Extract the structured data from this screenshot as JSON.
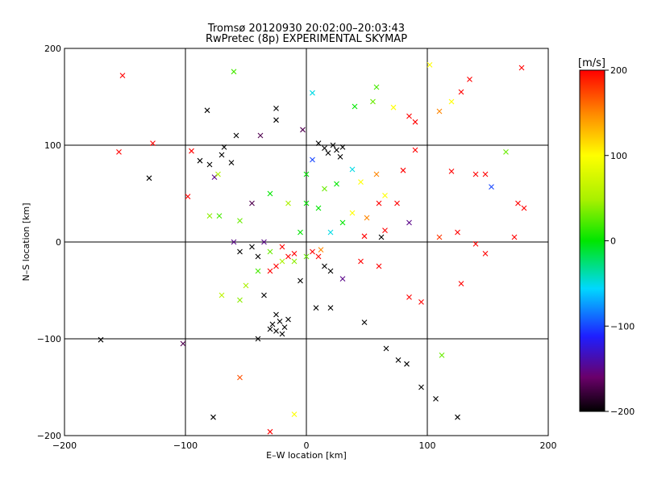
{
  "chart_data": {
    "type": "scatter",
    "title": "Tromsø 20120930 20:02:00–20:03:43",
    "subtitle": "RwPretec (8p) EXPERIMENTAL SKYMAP",
    "xlabel": "E–W location [km]",
    "ylabel": "N–S location [km]",
    "xlim": [
      -200,
      200
    ],
    "ylim": [
      -200,
      200
    ],
    "x_ticks": [
      "−200",
      "−100",
      "0",
      "100",
      "200"
    ],
    "y_ticks": [
      "−200",
      "−100",
      "0",
      "100",
      "200"
    ],
    "grid": true,
    "colorbar": {
      "label": "[m/s]",
      "range": [
        -200,
        200
      ],
      "ticks": [
        "200",
        "100",
        "0",
        "−100",
        "−200"
      ],
      "colormap": "rainbow: black-purple-blue-cyan-green-yellow-red"
    },
    "markers": "x for large symbols, + for small symbols; color = velocity in m/s",
    "points": [
      {
        "x": -152,
        "y": 172,
        "v": 200,
        "m": "x"
      },
      {
        "x": -155,
        "y": 93,
        "v": 200,
        "m": "x"
      },
      {
        "x": -127,
        "y": 102,
        "v": 200,
        "m": "x"
      },
      {
        "x": -130,
        "y": 66,
        "v": -200,
        "m": "x"
      },
      {
        "x": -98,
        "y": 47,
        "v": 200,
        "m": "x"
      },
      {
        "x": -95,
        "y": 94,
        "v": 200,
        "m": "x"
      },
      {
        "x": -88,
        "y": 84,
        "v": -200,
        "m": "x"
      },
      {
        "x": -82,
        "y": 136,
        "v": -200,
        "m": "x"
      },
      {
        "x": -80,
        "y": 80,
        "v": -200,
        "m": "x"
      },
      {
        "x": -76,
        "y": 67,
        "v": -150,
        "m": "x"
      },
      {
        "x": -73,
        "y": 70,
        "v": 50,
        "m": "x"
      },
      {
        "x": -70,
        "y": 90,
        "v": -200,
        "m": "x"
      },
      {
        "x": -68,
        "y": 98,
        "v": -200,
        "m": "x"
      },
      {
        "x": -62,
        "y": 82,
        "v": -200,
        "m": "x"
      },
      {
        "x": -58,
        "y": 110,
        "v": -200,
        "m": "x"
      },
      {
        "x": -60,
        "y": 176,
        "v": 20,
        "m": "x"
      },
      {
        "x": -80,
        "y": 27,
        "v": 40,
        "m": "x"
      },
      {
        "x": -72,
        "y": 27,
        "v": 20,
        "m": "x"
      },
      {
        "x": -55,
        "y": 22,
        "v": 30,
        "m": "x"
      },
      {
        "x": -38,
        "y": 110,
        "v": -170,
        "m": "x"
      },
      {
        "x": -25,
        "y": 138,
        "v": -200,
        "m": "x"
      },
      {
        "x": -25,
        "y": 126,
        "v": -200,
        "m": "x"
      },
      {
        "x": -3,
        "y": 116,
        "v": -170,
        "m": "x"
      },
      {
        "x": 5,
        "y": 154,
        "v": -50,
        "m": "x"
      },
      {
        "x": 40,
        "y": 140,
        "v": 0,
        "m": "x"
      },
      {
        "x": 55,
        "y": 145,
        "v": 30,
        "m": "x"
      },
      {
        "x": 58,
        "y": 160,
        "v": 20,
        "m": "x"
      },
      {
        "x": 72,
        "y": 139,
        "v": 100,
        "m": "x"
      },
      {
        "x": 85,
        "y": 130,
        "v": 200,
        "m": "x"
      },
      {
        "x": 90,
        "y": 124,
        "v": 200,
        "m": "x"
      },
      {
        "x": 102,
        "y": 183,
        "v": 100,
        "m": "x"
      },
      {
        "x": 110,
        "y": 135,
        "v": 150,
        "m": "x"
      },
      {
        "x": 120,
        "y": 145,
        "v": 100,
        "m": "x"
      },
      {
        "x": 128,
        "y": 155,
        "v": 200,
        "m": "x"
      },
      {
        "x": 135,
        "y": 168,
        "v": 200,
        "m": "x"
      },
      {
        "x": 165,
        "y": 93,
        "v": 30,
        "m": "x"
      },
      {
        "x": 178,
        "y": 180,
        "v": 200,
        "m": "x"
      },
      {
        "x": 120,
        "y": 73,
        "v": 200,
        "m": "x"
      },
      {
        "x": 140,
        "y": 70,
        "v": 200,
        "m": "x"
      },
      {
        "x": 148,
        "y": 70,
        "v": 200,
        "m": "x"
      },
      {
        "x": 153,
        "y": 57,
        "v": -100,
        "m": "x"
      },
      {
        "x": 175,
        "y": 40,
        "v": 200,
        "m": "x"
      },
      {
        "x": 180,
        "y": 35,
        "v": 200,
        "m": "x"
      },
      {
        "x": 90,
        "y": 95,
        "v": 200,
        "m": "x"
      },
      {
        "x": 80,
        "y": 74,
        "v": 200,
        "m": "x"
      },
      {
        "x": 85,
        "y": 20,
        "v": -150,
        "m": "x"
      },
      {
        "x": 62,
        "y": 5,
        "v": -200,
        "m": "x"
      },
      {
        "x": 48,
        "y": 6,
        "v": 200,
        "m": "x"
      },
      {
        "x": 65,
        "y": 12,
        "v": 200,
        "m": "x"
      },
      {
        "x": 110,
        "y": 5,
        "v": 180,
        "m": "x"
      },
      {
        "x": 125,
        "y": 10,
        "v": 200,
        "m": "x"
      },
      {
        "x": 140,
        "y": -2,
        "v": 200,
        "m": "x"
      },
      {
        "x": 148,
        "y": -12,
        "v": 200,
        "m": "x"
      },
      {
        "x": 172,
        "y": 5,
        "v": 200,
        "m": "x"
      },
      {
        "x": 128,
        "y": -43,
        "v": 200,
        "m": "x"
      },
      {
        "x": 112,
        "y": -117,
        "v": 30,
        "m": "x"
      },
      {
        "x": 95,
        "y": -62,
        "v": 200,
        "m": "x"
      },
      {
        "x": 85,
        "y": -57,
        "v": 200,
        "m": "x"
      },
      {
        "x": 66,
        "y": -110,
        "v": -200,
        "m": "x"
      },
      {
        "x": 76,
        "y": -122,
        "v": -200,
        "m": "x"
      },
      {
        "x": 83,
        "y": -126,
        "v": -200,
        "m": "x"
      },
      {
        "x": 95,
        "y": -150,
        "v": -200,
        "m": "x"
      },
      {
        "x": 107,
        "y": -162,
        "v": -200,
        "m": "x"
      },
      {
        "x": 125,
        "y": -181,
        "v": -200,
        "m": "x"
      },
      {
        "x": 48,
        "y": -83,
        "v": -200,
        "m": "x"
      },
      {
        "x": 20,
        "y": -68,
        "v": -200,
        "m": "x"
      },
      {
        "x": 8,
        "y": -68,
        "v": -200,
        "m": "x"
      },
      {
        "x": 45,
        "y": -20,
        "v": 200,
        "m": "x"
      },
      {
        "x": 30,
        "y": -38,
        "v": -150,
        "m": "x"
      },
      {
        "x": 15,
        "y": -25,
        "v": -200,
        "m": "x"
      },
      {
        "x": -170,
        "y": -101,
        "v": -200,
        "m": "x"
      },
      {
        "x": -102,
        "y": -105,
        "v": -170,
        "m": "x"
      },
      {
        "x": -55,
        "y": -140,
        "v": 170,
        "m": "x"
      },
      {
        "x": -77,
        "y": -181,
        "v": -200,
        "m": "x"
      },
      {
        "x": -40,
        "y": -100,
        "v": -200,
        "m": "x"
      },
      {
        "x": -30,
        "y": -196,
        "v": 200,
        "m": "x"
      },
      {
        "x": -10,
        "y": -178,
        "v": 100,
        "m": "x"
      },
      {
        "x": -25,
        "y": -75,
        "v": -200,
        "m": "x"
      },
      {
        "x": -22,
        "y": -82,
        "v": -200,
        "m": "x"
      },
      {
        "x": -28,
        "y": -85,
        "v": -200,
        "m": "x"
      },
      {
        "x": -18,
        "y": -88,
        "v": -200,
        "m": "x"
      },
      {
        "x": -25,
        "y": -92,
        "v": -200,
        "m": "x"
      },
      {
        "x": -20,
        "y": -95,
        "v": -200,
        "m": "x"
      },
      {
        "x": -30,
        "y": -90,
        "v": -200,
        "m": "x"
      },
      {
        "x": -15,
        "y": -80,
        "v": -200,
        "m": "x"
      },
      {
        "x": -35,
        "y": -55,
        "v": -200,
        "m": "x"
      },
      {
        "x": -60,
        "y": 0,
        "v": -150,
        "m": "x"
      },
      {
        "x": -55,
        "y": -10,
        "v": -200,
        "m": "x"
      },
      {
        "x": -30,
        "y": -30,
        "v": 200,
        "m": "x"
      },
      {
        "x": -25,
        "y": -25,
        "v": 200,
        "m": "x"
      },
      {
        "x": -15,
        "y": -15,
        "v": 200,
        "m": "x"
      },
      {
        "x": -20,
        "y": -5,
        "v": 200,
        "m": "x"
      },
      {
        "x": -10,
        "y": -12,
        "v": 200,
        "m": "x"
      },
      {
        "x": 5,
        "y": -10,
        "v": 200,
        "m": "x"
      },
      {
        "x": 10,
        "y": -15,
        "v": 200,
        "m": "x"
      },
      {
        "x": 12,
        "y": -8,
        "v": 150,
        "m": "x"
      },
      {
        "x": 20,
        "y": -30,
        "v": -200,
        "m": "x"
      },
      {
        "x": -5,
        "y": -40,
        "v": -200,
        "m": "x"
      },
      {
        "x": -40,
        "y": -15,
        "v": -200,
        "m": "x"
      },
      {
        "x": -45,
        "y": -5,
        "v": -200,
        "m": "x"
      },
      {
        "x": -35,
        "y": 0,
        "v": -150,
        "m": "x"
      },
      {
        "x": 15,
        "y": 97,
        "v": -200,
        "m": "x"
      },
      {
        "x": 18,
        "y": 92,
        "v": -200,
        "m": "x"
      },
      {
        "x": 22,
        "y": 100,
        "v": -200,
        "m": "x"
      },
      {
        "x": 25,
        "y": 95,
        "v": -200,
        "m": "x"
      },
      {
        "x": 10,
        "y": 102,
        "v": -200,
        "m": "x"
      },
      {
        "x": 28,
        "y": 88,
        "v": -200,
        "m": "x"
      },
      {
        "x": 30,
        "y": 98,
        "v": -200,
        "m": "x"
      },
      {
        "x": 5,
        "y": 85,
        "v": -100,
        "m": "x"
      },
      {
        "x": 0,
        "y": 70,
        "v": 0,
        "m": "x"
      },
      {
        "x": 15,
        "y": 55,
        "v": 30,
        "m": "x"
      },
      {
        "x": 25,
        "y": 60,
        "v": 0,
        "m": "x"
      },
      {
        "x": 38,
        "y": 75,
        "v": -50,
        "m": "x"
      },
      {
        "x": 45,
        "y": 62,
        "v": 100,
        "m": "x"
      },
      {
        "x": 58,
        "y": 70,
        "v": 150,
        "m": "x"
      },
      {
        "x": 60,
        "y": 40,
        "v": 200,
        "m": "x"
      },
      {
        "x": 65,
        "y": 48,
        "v": 100,
        "m": "x"
      },
      {
        "x": 75,
        "y": 40,
        "v": 200,
        "m": "x"
      },
      {
        "x": 30,
        "y": 20,
        "v": 0,
        "m": "x"
      },
      {
        "x": 38,
        "y": 30,
        "v": 100,
        "m": "x"
      },
      {
        "x": 50,
        "y": 25,
        "v": 150,
        "m": "x"
      },
      {
        "x": 20,
        "y": 10,
        "v": -50,
        "m": "x"
      },
      {
        "x": 0,
        "y": 40,
        "v": 0,
        "m": "x"
      },
      {
        "x": 10,
        "y": 35,
        "v": 0,
        "m": "x"
      },
      {
        "x": -15,
        "y": 40,
        "v": 50,
        "m": "x"
      },
      {
        "x": -30,
        "y": 50,
        "v": 0,
        "m": "x"
      },
      {
        "x": -45,
        "y": 40,
        "v": -170,
        "m": "x"
      },
      {
        "x": -5,
        "y": 10,
        "v": 0,
        "m": "x"
      },
      {
        "x": 0,
        "y": -15,
        "v": 30,
        "m": "x"
      },
      {
        "x": -10,
        "y": -20,
        "v": 40,
        "m": "x"
      },
      {
        "x": -20,
        "y": -20,
        "v": 50,
        "m": "x"
      },
      {
        "x": -30,
        "y": -10,
        "v": 30,
        "m": "x"
      },
      {
        "x": -40,
        "y": -30,
        "v": 20,
        "m": "x"
      },
      {
        "x": -50,
        "y": -45,
        "v": 50,
        "m": "x"
      },
      {
        "x": -55,
        "y": -60,
        "v": 40,
        "m": "x"
      },
      {
        "x": -70,
        "y": -55,
        "v": 60,
        "m": "x"
      },
      {
        "x": 60,
        "y": -25,
        "v": 200,
        "m": "x"
      }
    ]
  }
}
